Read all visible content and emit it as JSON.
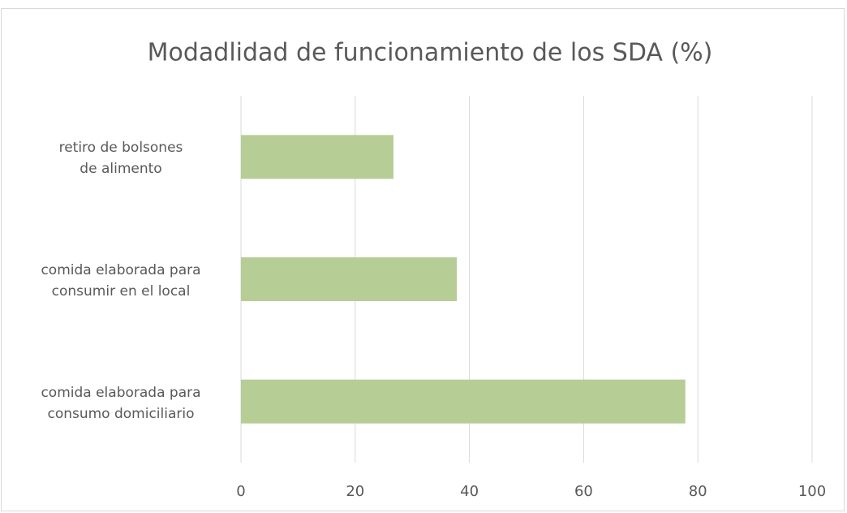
{
  "chart_data": {
    "type": "bar",
    "orientation": "horizontal",
    "title": "Modadlidad de funcionamiento de los SDA (%)",
    "categories": [
      "retiro de bolsones\nde alimento",
      "comida elaborada para\nconsumir en el local",
      "comida elaborada para\nconsumo domiciliario"
    ],
    "values": [
      26.7,
      37.8,
      77.8
    ],
    "color": "#b6cd95",
    "xlim": [
      0,
      100
    ],
    "xticks": [
      0,
      20,
      40,
      60,
      80,
      100
    ],
    "grid": true
  }
}
